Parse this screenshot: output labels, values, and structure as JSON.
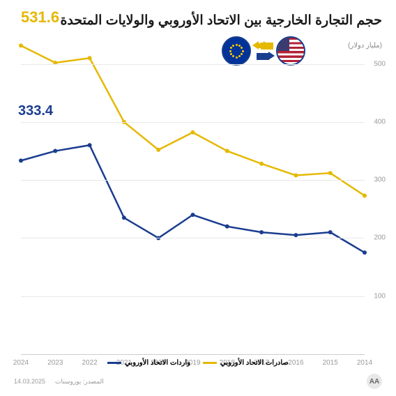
{
  "title": "حجم التجارة الخارجية بين الاتحاد الأوروبي والولايات المتحدة",
  "unit_label": "(مليار دولار)",
  "source_label": "المصدر: يوروستات",
  "date_label": "14.03.2025",
  "logo_text": "AA",
  "chart": {
    "type": "line",
    "background_color": "#ffffff",
    "grid_color": "#e8e8e8",
    "axis_text_color": "#999999",
    "x_categories": [
      "2014",
      "2015",
      "2016",
      "2017",
      "2018",
      "2019",
      "2020",
      "2021",
      "2022",
      "2023",
      "2024"
    ],
    "x_reversed": true,
    "ylim": [
      0,
      550
    ],
    "y_ticks": [
      100,
      200,
      300,
      400,
      500
    ],
    "series": [
      {
        "name": "exports",
        "label": "صادرات الاتحاد الأوروبي",
        "color": "#e6b800",
        "line_width": 2.5,
        "marker": "circle",
        "marker_size": 4,
        "end_label": "531.6",
        "values": [
          273,
          312,
          308,
          328,
          350,
          382,
          352,
          400,
          510,
          502,
          531.6
        ]
      },
      {
        "name": "imports",
        "label": "واردات الاتحاد الأوروبي",
        "color": "#1a3d8f",
        "line_width": 2.5,
        "marker": "circle",
        "marker_size": 4,
        "end_label": "333.4",
        "values": [
          175,
          210,
          205,
          210,
          220,
          240,
          200,
          235,
          360,
          350,
          333.4
        ]
      }
    ],
    "legend_fontsize": 10,
    "tick_fontsize": 10,
    "title_fontsize": 19
  }
}
